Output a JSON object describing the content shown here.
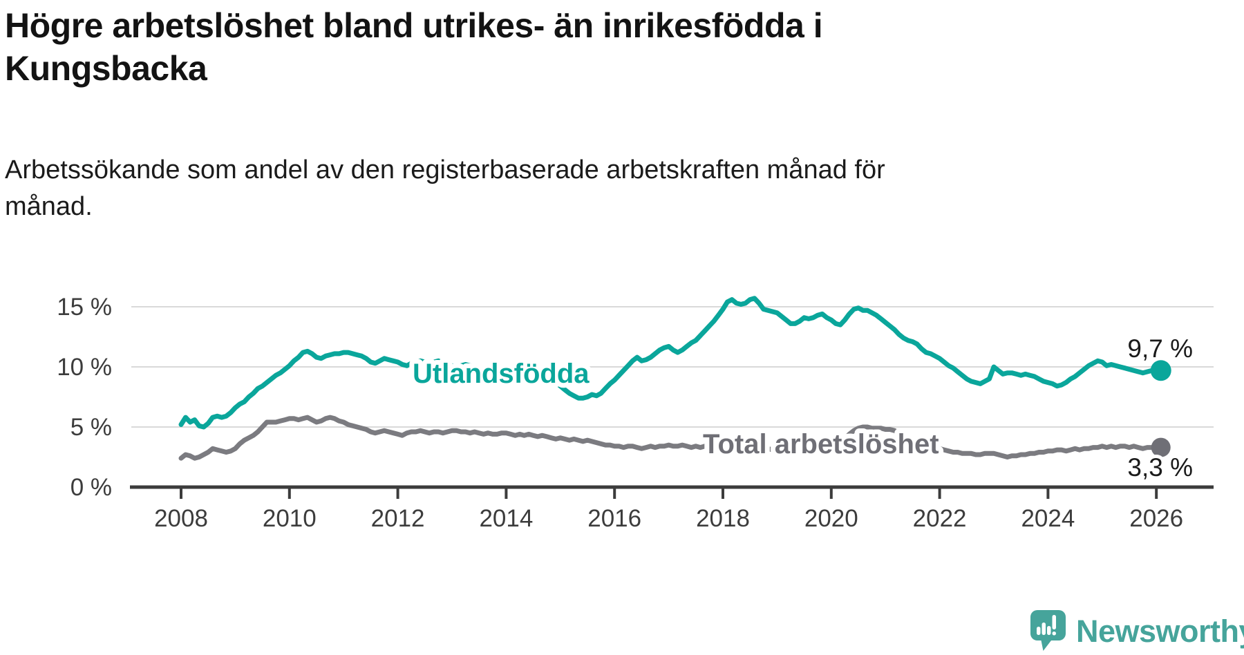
{
  "header": {
    "title": "Högre arbetslöshet bland utrikes- än inrikesfödda i\nKungsbacka",
    "subtitle": "Arbetssökande som andel av den registerbaserade arbetskraften månad för\nmånad."
  },
  "footer": {
    "logo_text": "Newsworthy"
  },
  "colors": {
    "background": "#ffffff",
    "grid": "#d9d9d9",
    "axis": "#3c3c3c",
    "tick_text": "#3c3c3c",
    "end_label_text": "#1a1a1a",
    "foreign_born_line": "#0aa69b",
    "total_line": "#7b7b80",
    "total_dot": "#6f6f76",
    "logo_teal": "#46a49b"
  },
  "chart_data": {
    "type": "line",
    "title": "Högre arbetslöshet bland utrikes- än inrikesfödda i Kungsbacka",
    "subtitle": "Arbetssökande som andel av den registerbaserade arbetskraften månad för månad.",
    "ylabel": "",
    "xlabel": "",
    "y_unit": "%",
    "ylim": [
      0,
      16.5
    ],
    "xlim": [
      2008.0,
      2027.0
    ],
    "grid": "horizontal",
    "legend_position": "inline-labels",
    "y_ticks": [
      {
        "value": 15,
        "label": "15 %"
      },
      {
        "value": 10,
        "label": "10 %"
      },
      {
        "value": 5,
        "label": "5 %"
      },
      {
        "value": 0,
        "label": "0 %"
      }
    ],
    "x_ticks": [
      {
        "year": 2008,
        "label": "2008"
      },
      {
        "year": 2010,
        "label": "2010"
      },
      {
        "year": 2012,
        "label": "2012"
      },
      {
        "year": 2014,
        "label": "2014"
      },
      {
        "year": 2016,
        "label": "2016"
      },
      {
        "year": 2018,
        "label": "2018"
      },
      {
        "year": 2020,
        "label": "2020"
      },
      {
        "year": 2022,
        "label": "2022"
      },
      {
        "year": 2024,
        "label": "2024"
      },
      {
        "year": 2026,
        "label": "2026"
      }
    ],
    "series": [
      {
        "id": "utlandsfodda",
        "name": "Utlandsfödda",
        "color": "#0aa69b",
        "dot_color": "#0aa69b",
        "end_label": "9,7 %",
        "end_value": 9.7,
        "start_year": 2008.0,
        "step_years": 0.0833333,
        "values": [
          5.2,
          5.8,
          5.4,
          5.6,
          5.1,
          5.0,
          5.3,
          5.8,
          5.9,
          5.8,
          5.9,
          6.2,
          6.6,
          6.9,
          7.1,
          7.5,
          7.8,
          8.2,
          8.4,
          8.7,
          9.0,
          9.3,
          9.5,
          9.8,
          10.1,
          10.5,
          10.8,
          11.2,
          11.3,
          11.1,
          10.8,
          10.7,
          10.9,
          11.0,
          11.1,
          11.1,
          11.2,
          11.2,
          11.1,
          11.0,
          10.9,
          10.7,
          10.4,
          10.3,
          10.5,
          10.7,
          10.6,
          10.5,
          10.4,
          10.2,
          10.1,
          10.3,
          10.4,
          10.5,
          10.4,
          10.3,
          10.4,
          10.5,
          10.3,
          10.2,
          10.1,
          10.0,
          10.1,
          10.2,
          10.1,
          10.0,
          9.9,
          9.9,
          9.8,
          9.8,
          9.7,
          9.7,
          9.7,
          9.6,
          9.6,
          9.5,
          9.4,
          9.4,
          9.3,
          9.2,
          9.1,
          9.0,
          8.9,
          8.7,
          8.4,
          8.1,
          7.8,
          7.6,
          7.4,
          7.4,
          7.5,
          7.7,
          7.6,
          7.8,
          8.2,
          8.6,
          8.9,
          9.3,
          9.7,
          10.1,
          10.5,
          10.8,
          10.5,
          10.6,
          10.8,
          11.1,
          11.4,
          11.6,
          11.7,
          11.4,
          11.2,
          11.4,
          11.7,
          12.0,
          12.2,
          12.6,
          13.0,
          13.4,
          13.8,
          14.3,
          14.8,
          15.4,
          15.6,
          15.3,
          15.2,
          15.3,
          15.6,
          15.7,
          15.3,
          14.8,
          14.7,
          14.6,
          14.5,
          14.2,
          13.9,
          13.6,
          13.6,
          13.8,
          14.1,
          14.0,
          14.1,
          14.3,
          14.4,
          14.1,
          13.9,
          13.6,
          13.5,
          13.9,
          14.4,
          14.8,
          14.9,
          14.7,
          14.7,
          14.5,
          14.3,
          14.0,
          13.7,
          13.4,
          13.1,
          12.7,
          12.4,
          12.2,
          12.1,
          11.9,
          11.5,
          11.2,
          11.1,
          10.9,
          10.7,
          10.4,
          10.1,
          9.9,
          9.6,
          9.3,
          9.0,
          8.8,
          8.7,
          8.6,
          8.8,
          9.0,
          10.0,
          9.7,
          9.4,
          9.5,
          9.5,
          9.4,
          9.3,
          9.4,
          9.3,
          9.2,
          9.0,
          8.8,
          8.7,
          8.6,
          8.4,
          8.5,
          8.7,
          9.0,
          9.2,
          9.5,
          9.8,
          10.1,
          10.3,
          10.5,
          10.4,
          10.1,
          10.2,
          10.1,
          10.0,
          9.9,
          9.8,
          9.7,
          9.6,
          9.5,
          9.6,
          9.7,
          9.6,
          9.7
        ]
      },
      {
        "id": "total",
        "name": "Total arbetslöshet",
        "color": "#7b7b80",
        "dot_color": "#6f6f76",
        "end_label": "3,3 %",
        "end_value": 3.3,
        "start_year": 2008.0,
        "step_years": 0.0833333,
        "values": [
          2.4,
          2.7,
          2.6,
          2.4,
          2.5,
          2.7,
          2.9,
          3.2,
          3.1,
          3.0,
          2.9,
          3.0,
          3.2,
          3.6,
          3.9,
          4.1,
          4.3,
          4.6,
          5.0,
          5.4,
          5.4,
          5.4,
          5.5,
          5.6,
          5.7,
          5.7,
          5.6,
          5.7,
          5.8,
          5.6,
          5.4,
          5.5,
          5.7,
          5.8,
          5.7,
          5.5,
          5.4,
          5.2,
          5.1,
          5.0,
          4.9,
          4.8,
          4.6,
          4.5,
          4.6,
          4.7,
          4.6,
          4.5,
          4.4,
          4.3,
          4.5,
          4.6,
          4.6,
          4.7,
          4.6,
          4.5,
          4.6,
          4.6,
          4.5,
          4.6,
          4.7,
          4.7,
          4.6,
          4.6,
          4.5,
          4.6,
          4.5,
          4.4,
          4.5,
          4.4,
          4.4,
          4.5,
          4.5,
          4.4,
          4.3,
          4.4,
          4.3,
          4.4,
          4.3,
          4.2,
          4.3,
          4.2,
          4.1,
          4.0,
          4.1,
          4.0,
          3.9,
          4.0,
          3.9,
          3.8,
          3.9,
          3.8,
          3.7,
          3.6,
          3.5,
          3.5,
          3.4,
          3.4,
          3.3,
          3.4,
          3.4,
          3.3,
          3.2,
          3.3,
          3.4,
          3.3,
          3.4,
          3.4,
          3.5,
          3.4,
          3.4,
          3.5,
          3.4,
          3.3,
          3.4,
          3.3,
          3.4,
          3.4,
          3.3,
          3.4,
          3.4,
          3.3,
          3.3,
          3.2,
          3.3,
          3.2,
          3.1,
          3.2,
          3.1,
          3.1,
          3.2,
          3.1,
          3.1,
          3.0,
          3.1,
          3.1,
          3.0,
          3.1,
          3.2,
          3.1,
          3.2,
          3.2,
          3.3,
          3.2,
          3.3,
          3.3,
          3.5,
          4.0,
          4.4,
          4.7,
          4.9,
          5.0,
          5.0,
          4.9,
          4.9,
          4.9,
          4.8,
          4.8,
          4.7,
          4.5,
          4.3,
          4.1,
          3.9,
          3.8,
          3.7,
          3.5,
          3.4,
          3.3,
          3.2,
          3.1,
          3.0,
          2.9,
          2.9,
          2.8,
          2.8,
          2.8,
          2.7,
          2.7,
          2.8,
          2.8,
          2.8,
          2.7,
          2.6,
          2.5,
          2.6,
          2.6,
          2.7,
          2.7,
          2.8,
          2.8,
          2.9,
          2.9,
          3.0,
          3.0,
          3.1,
          3.1,
          3.0,
          3.1,
          3.2,
          3.1,
          3.2,
          3.2,
          3.3,
          3.3,
          3.4,
          3.3,
          3.4,
          3.3,
          3.4,
          3.4,
          3.3,
          3.4,
          3.3,
          3.2,
          3.3,
          3.3,
          3.2,
          3.3
        ]
      }
    ]
  }
}
